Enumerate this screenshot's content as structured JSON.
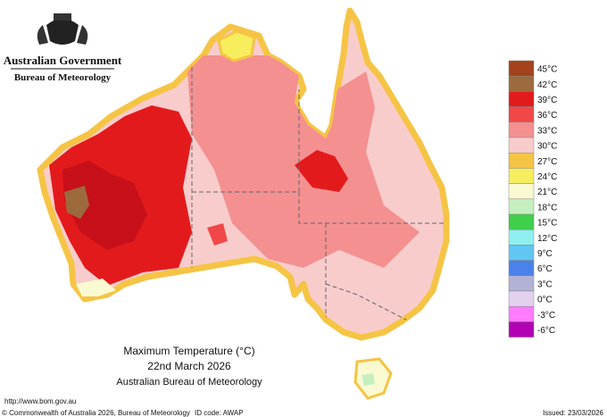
{
  "header": {
    "title": "Australian Government",
    "subtitle": "Bureau of Meteorology"
  },
  "map": {
    "title": "Maximum Temperature (°C)",
    "date": "22nd March 2026",
    "source": "Australian Bureau of Meteorology"
  },
  "legend": {
    "items": [
      {
        "label": "45°C",
        "color": "#a3421c"
      },
      {
        "label": "42°C",
        "color": "#9c6a3c"
      },
      {
        "label": "39°C",
        "color": "#e31a1c"
      },
      {
        "label": "36°C",
        "color": "#f04848"
      },
      {
        "label": "33°C",
        "color": "#f49090"
      },
      {
        "label": "30°C",
        "color": "#f9cccc"
      },
      {
        "label": "27°C",
        "color": "#f6c445"
      },
      {
        "label": "24°C",
        "color": "#f7ee5e"
      },
      {
        "label": "21°C",
        "color": "#fafad2"
      },
      {
        "label": "18°C",
        "color": "#c6efc0"
      },
      {
        "label": "15°C",
        "color": "#3fcf4a"
      },
      {
        "label": "12°C",
        "color": "#8ff0f0"
      },
      {
        "label": "9°C",
        "color": "#62c6f2"
      },
      {
        "label": "6°C",
        "color": "#4a82ea"
      },
      {
        "label": "3°C",
        "color": "#b2b2d6"
      },
      {
        "label": "0°C",
        "color": "#e2d2ee"
      },
      {
        "label": "-3°C",
        "color": "#ff7cff"
      },
      {
        "label": "-6°C",
        "color": "#b400b4"
      }
    ]
  },
  "footer": {
    "url": "http://www.bom.gov.au",
    "copyright": "© Commonwealth of Australia 2026, Bureau of Meteorology",
    "id_code": "ID code: AWAP",
    "issued": "Issued: 23/03/2026"
  }
}
